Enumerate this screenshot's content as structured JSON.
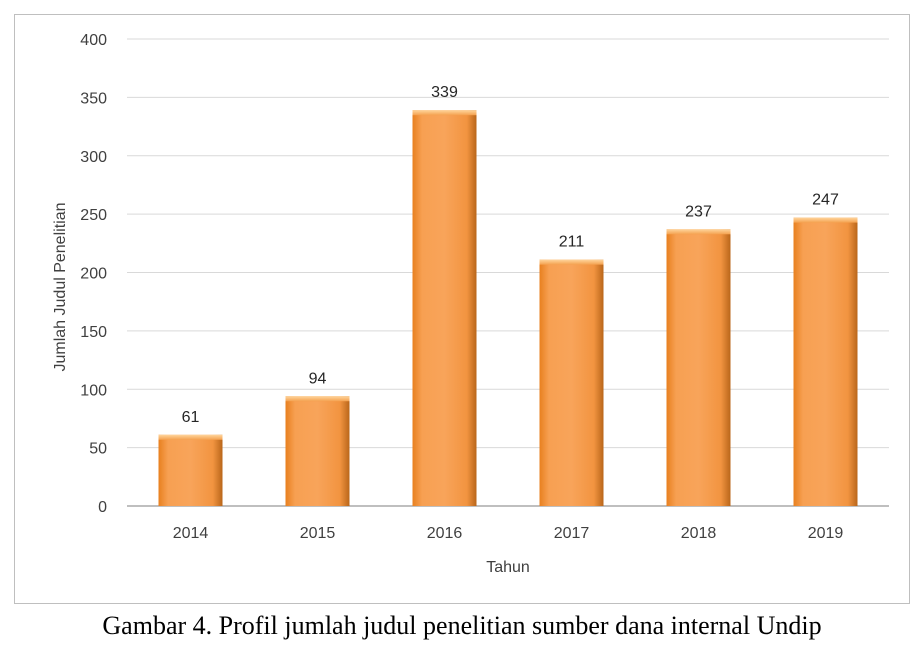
{
  "caption": "Gambar 4. Profil jumlah judul penelitian sumber dana internal Undip",
  "colors": {
    "bar_top": "#ffb36b",
    "bar_mid": "#f5963a",
    "bar_bottom": "#f08a2c",
    "grid": "#d9d9d9",
    "axis": "#bfbfbf"
  },
  "chart_data": {
    "type": "bar",
    "categories": [
      "2014",
      "2015",
      "2016",
      "2017",
      "2018",
      "2019"
    ],
    "values": [
      61,
      94,
      339,
      211,
      237,
      247
    ],
    "data_labels": [
      "61",
      "94",
      "339",
      "211",
      "237",
      "247"
    ],
    "xlabel": "Tahun",
    "ylabel": "Jumlah Judul  Penelitian",
    "ylim": [
      0,
      400
    ],
    "yticks": [
      0,
      50,
      100,
      150,
      200,
      250,
      300,
      350,
      400
    ],
    "grid": true,
    "legend": "none"
  }
}
